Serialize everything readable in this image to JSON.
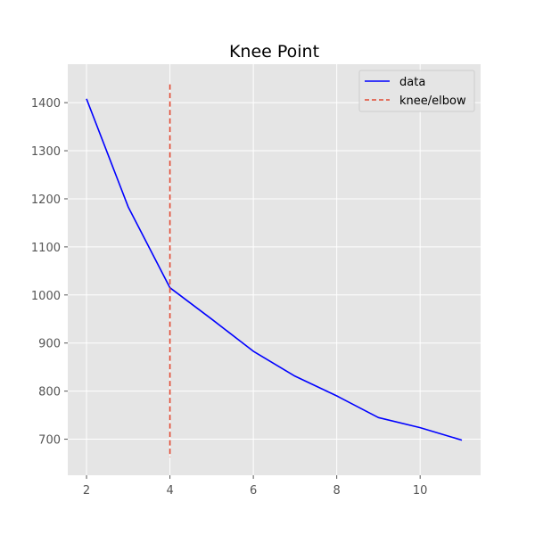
{
  "chart_data": {
    "type": "line",
    "title": "Knee Point",
    "xlabel": "",
    "ylabel": "",
    "xlim": [
      1.55,
      11.45
    ],
    "ylim": [
      625,
      1480
    ],
    "x_ticks": [
      2,
      4,
      6,
      8,
      10
    ],
    "y_ticks": [
      700,
      800,
      900,
      1000,
      1100,
      1200,
      1300,
      1400
    ],
    "grid": true,
    "legend_position": "top-right",
    "series": [
      {
        "name": "data",
        "color": "#0000ff",
        "style": "solid",
        "x": [
          2,
          3,
          4,
          5,
          6,
          7,
          8,
          9,
          10,
          11
        ],
        "y": [
          1408,
          1183,
          1015,
          950,
          883,
          831,
          790,
          745,
          724,
          698
        ]
      }
    ],
    "knee": {
      "name": "knee/elbow",
      "color": "#e24a33",
      "style": "dashed",
      "x": 4,
      "y_range": [
        662,
        1438
      ]
    }
  }
}
